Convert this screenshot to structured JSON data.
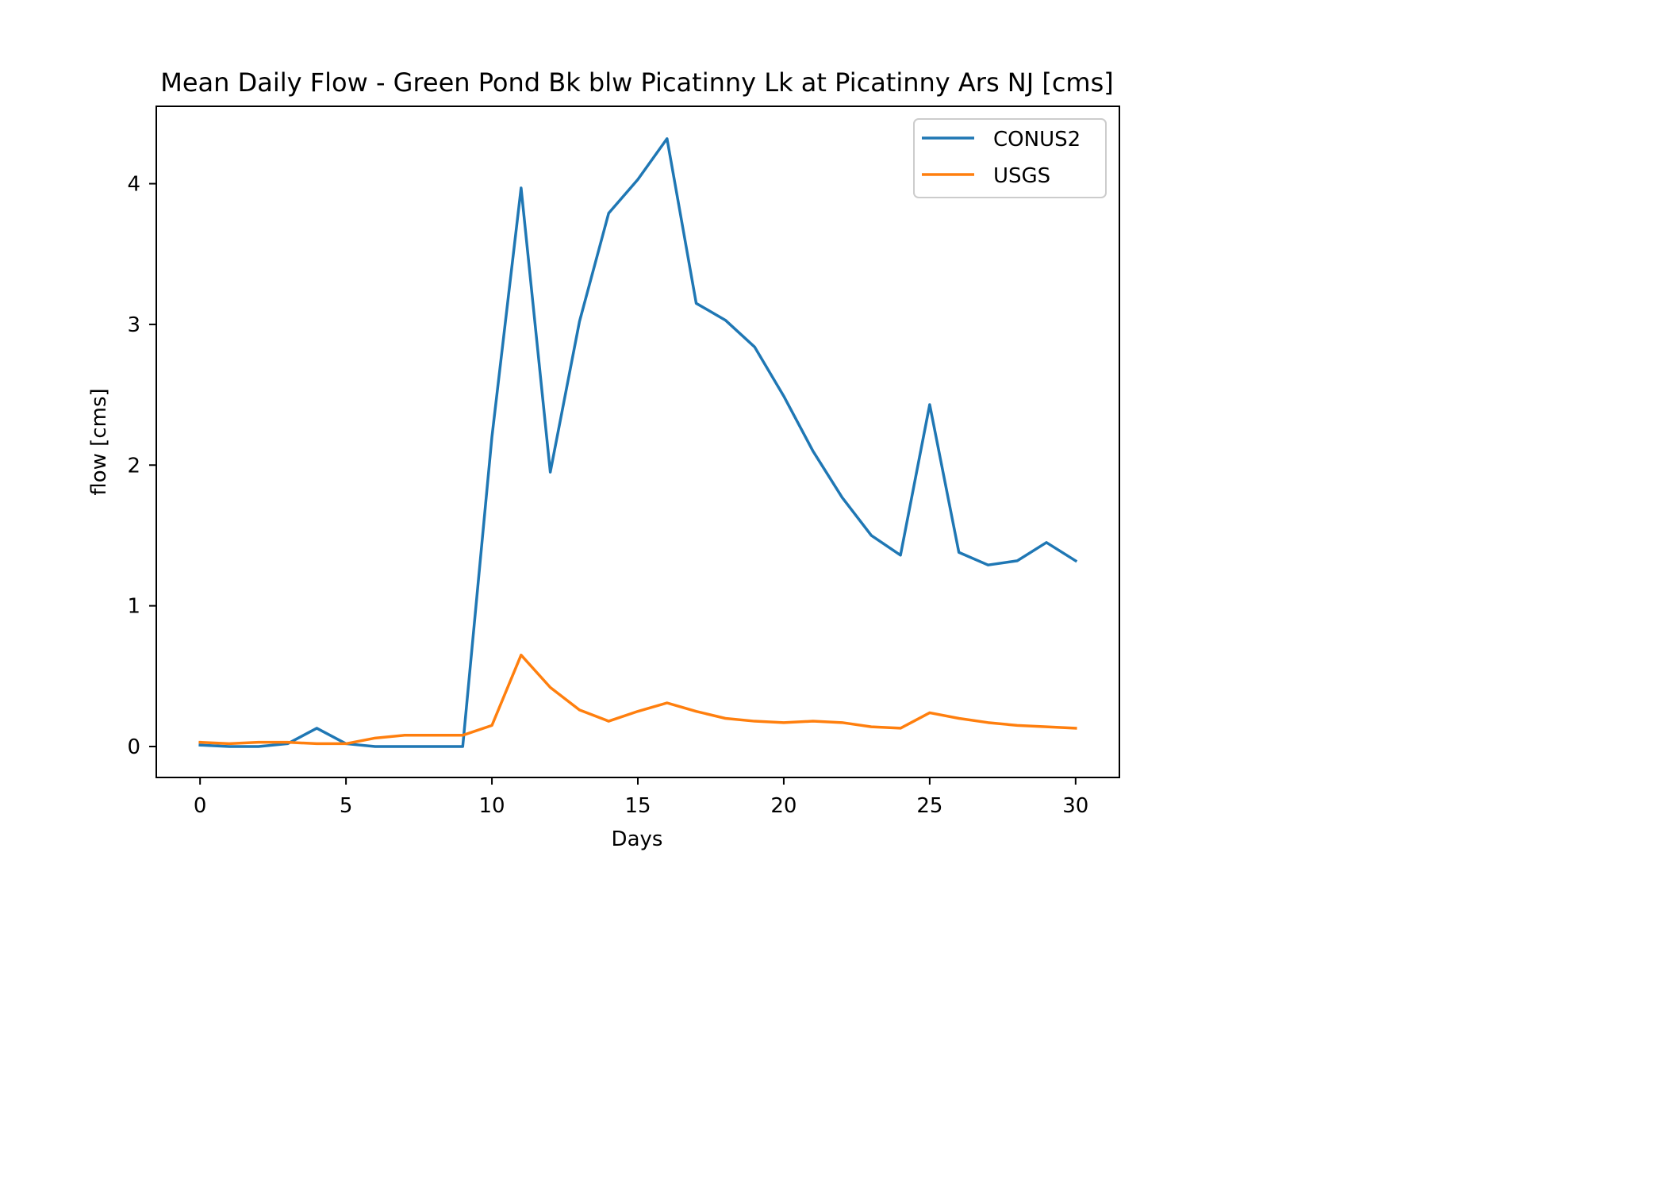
{
  "chart_data": {
    "type": "line",
    "title": "Mean Daily Flow - Green Pond Bk blw Picatinny Lk at Picatinny Ars NJ [cms]",
    "xlabel": "Days",
    "ylabel": "flow [cms]",
    "xlim": [
      -1.5,
      31.5
    ],
    "ylim": [
      -0.22,
      4.55
    ],
    "xticks": [
      0,
      5,
      10,
      15,
      20,
      25,
      30
    ],
    "yticks": [
      0,
      1,
      2,
      3,
      4
    ],
    "grid": false,
    "legend_position": "upper right",
    "x": [
      0,
      1,
      2,
      3,
      4,
      5,
      6,
      7,
      8,
      9,
      10,
      11,
      12,
      13,
      14,
      15,
      16,
      17,
      18,
      19,
      20,
      21,
      22,
      23,
      24,
      25,
      26,
      27,
      28,
      29,
      30
    ],
    "series": [
      {
        "name": "CONUS2",
        "color": "#1f77b4",
        "values": [
          0.01,
          0.0,
          0.0,
          0.02,
          0.13,
          0.02,
          0.0,
          0.0,
          0.0,
          0.0,
          2.2,
          3.97,
          1.95,
          3.02,
          3.79,
          4.03,
          4.32,
          3.15,
          3.03,
          2.84,
          2.49,
          2.1,
          1.77,
          1.5,
          1.36,
          2.43,
          1.38,
          1.29,
          1.32,
          1.45,
          1.32
        ]
      },
      {
        "name": "USGS",
        "color": "#ff7f0e",
        "values": [
          0.03,
          0.02,
          0.03,
          0.03,
          0.02,
          0.02,
          0.06,
          0.08,
          0.08,
          0.08,
          0.15,
          0.65,
          0.42,
          0.26,
          0.18,
          0.25,
          0.31,
          0.25,
          0.2,
          0.18,
          0.17,
          0.18,
          0.17,
          0.14,
          0.13,
          0.24,
          0.2,
          0.17,
          0.15,
          0.14,
          0.13
        ]
      }
    ]
  }
}
